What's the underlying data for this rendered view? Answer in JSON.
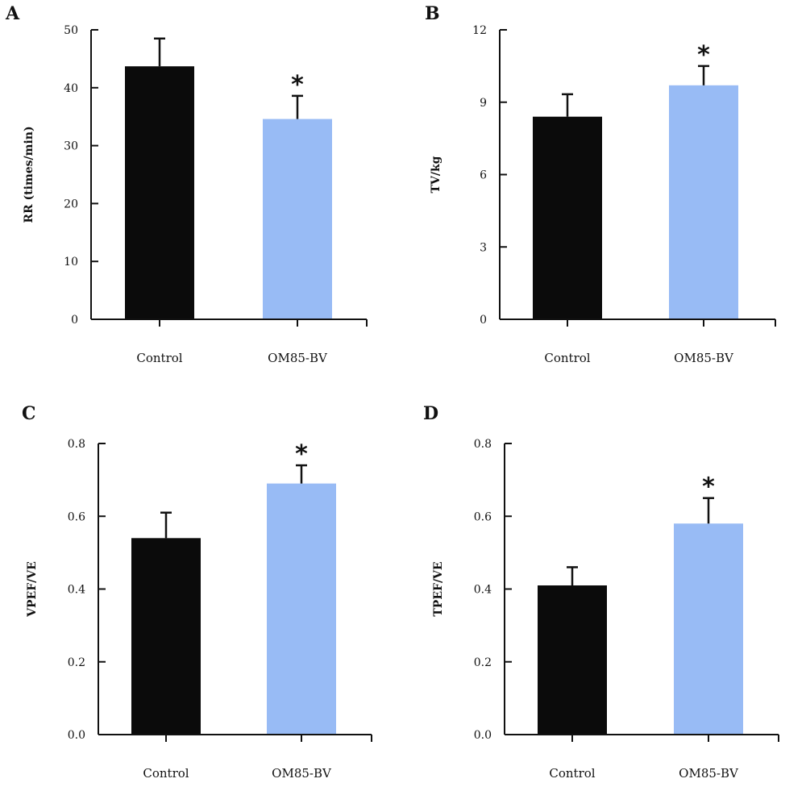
{
  "colors": {
    "control": "#0b0b0b",
    "treatment": "#98bbf5",
    "axis": "#111111"
  },
  "chart_data": [
    {
      "panel": "A",
      "type": "bar",
      "categories": [
        "Control",
        "OM85-BV"
      ],
      "values": [
        43.7,
        34.6
      ],
      "errors": [
        4.8,
        4.0
      ],
      "significance": [
        "",
        "*"
      ],
      "ylabel": "RR (times/min)",
      "ylim": [
        0,
        50
      ],
      "yticks": [
        0,
        10,
        20,
        30,
        40,
        50
      ],
      "ytick_labels": [
        "0",
        "10",
        "20",
        "30",
        "40",
        "50"
      ]
    },
    {
      "panel": "B",
      "type": "bar",
      "categories": [
        "Control",
        "OM85-BV"
      ],
      "values": [
        8.4,
        9.7
      ],
      "errors": [
        0.93,
        0.8
      ],
      "significance": [
        "",
        "*"
      ],
      "ylabel": "TV/kg",
      "ylim": [
        0,
        12
      ],
      "yticks": [
        0,
        3,
        6,
        9,
        12
      ],
      "ytick_labels": [
        "0",
        "3",
        "6",
        "9",
        "12"
      ]
    },
    {
      "panel": "C",
      "type": "bar",
      "categories": [
        "Control",
        "OM85-BV"
      ],
      "values": [
        0.54,
        0.69
      ],
      "errors": [
        0.07,
        0.05
      ],
      "significance": [
        "",
        "*"
      ],
      "ylabel": "VPEF/VE",
      "ylim": [
        0,
        0.8
      ],
      "yticks": [
        0,
        0.2,
        0.4,
        0.6,
        0.8
      ],
      "ytick_labels": [
        "0.0",
        "0.2",
        "0.4",
        "0.6",
        "0.8"
      ]
    },
    {
      "panel": "D",
      "type": "bar",
      "categories": [
        "Control",
        "OM85-BV"
      ],
      "values": [
        0.41,
        0.58
      ],
      "errors": [
        0.05,
        0.07
      ],
      "significance": [
        "",
        "*"
      ],
      "ylabel": "TPEF/VE",
      "ylim": [
        0,
        0.8
      ],
      "yticks": [
        0,
        0.2,
        0.4,
        0.6,
        0.8
      ],
      "ytick_labels": [
        "0.0",
        "0.2",
        "0.4",
        "0.6",
        "0.8"
      ]
    }
  ]
}
